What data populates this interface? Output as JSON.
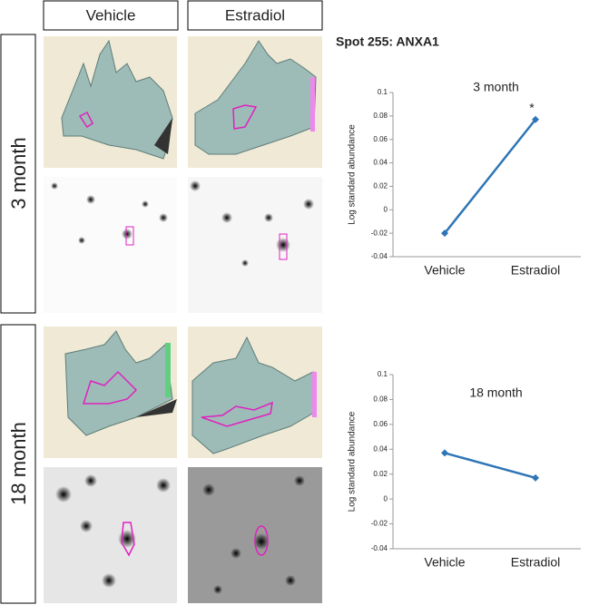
{
  "figure": {
    "title": "Spot 255: ANXA1",
    "columns": [
      "Vehicle",
      "Estradiol"
    ],
    "rows": [
      "3 month",
      "18 month"
    ]
  },
  "chart_data": [
    {
      "type": "line",
      "title": "3 month",
      "y_label": "Log standard abundance",
      "categories": [
        "Vehicle",
        "Estradiol"
      ],
      "values": [
        -0.02,
        0.077
      ],
      "color": "#2e75b6",
      "annotation": "*",
      "ylim": [
        -0.04,
        0.1
      ],
      "yticks": [
        -0.04,
        -0.02,
        0,
        0.02,
        0.04,
        0.06,
        0.08,
        0.1
      ]
    },
    {
      "type": "line",
      "title": "18 month",
      "y_label": "Log standard abundance",
      "categories": [
        "Vehicle",
        "Estradiol"
      ],
      "values": [
        0.037,
        0.017
      ],
      "color": "#2e75b6",
      "ylim": [
        -0.04,
        0.1
      ],
      "yticks": [
        -0.04,
        -0.02,
        0,
        0.02,
        0.04,
        0.06,
        0.08,
        0.1
      ]
    }
  ]
}
